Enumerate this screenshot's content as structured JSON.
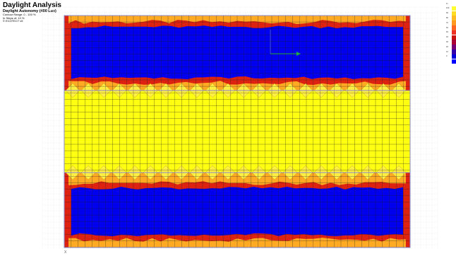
{
  "header": {
    "title": "Daylight Analysis",
    "subtitle": "Daylight Autonomy (400 Lux)",
    "contour_range": "Contour Range: 0 - 100 %",
    "steps": "In Steps of: 10 %",
    "credit": "© ECOTECT v5"
  },
  "legend": {
    "levels": [
      {
        "label": "%",
        "color": "#ffffff"
      },
      {
        "label": "100",
        "color": "#ffff33"
      },
      {
        "label": "90",
        "color": "#ffdd22"
      },
      {
        "label": "80",
        "color": "#ffbb22"
      },
      {
        "label": "70",
        "color": "#ff9922"
      },
      {
        "label": "60",
        "color": "#ff6622"
      },
      {
        "label": "50",
        "color": "#ee3322"
      },
      {
        "label": "40",
        "color": "#cc1111"
      },
      {
        "label": "30",
        "color": "#aa0033"
      },
      {
        "label": "20",
        "color": "#770077"
      },
      {
        "label": "10",
        "color": "#3300aa"
      },
      {
        "label": "0",
        "color": "#0000dd"
      },
      {
        "label": "",
        "color": "#0000ff"
      }
    ]
  },
  "colors": {
    "low": "#0000ee",
    "high": "#ffff11",
    "mid": "#ffaa22",
    "red": "#dd2211",
    "grid": "#222222",
    "frame": "#8888cc"
  },
  "axis_marker": {
    "label": "X"
  }
}
